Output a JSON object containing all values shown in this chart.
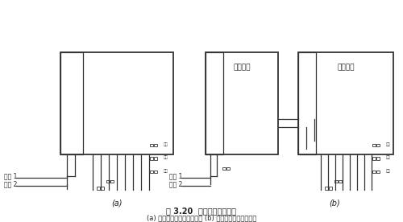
{
  "title_line1": "图 3.20  内部扩充通信系统",
  "title_line2": "(a) 一级扩充程控交换系统； (b) 二级扩充程控交换系统",
  "label_a": "(a)",
  "label_b": "(b)",
  "box_b1_label": "一级程控",
  "box_b2_label": "二级程控",
  "waixian1": "外线 1",
  "waixian2": "外线 2",
  "bg_color": "#ffffff",
  "line_color": "#333333",
  "text_color": "#222222"
}
